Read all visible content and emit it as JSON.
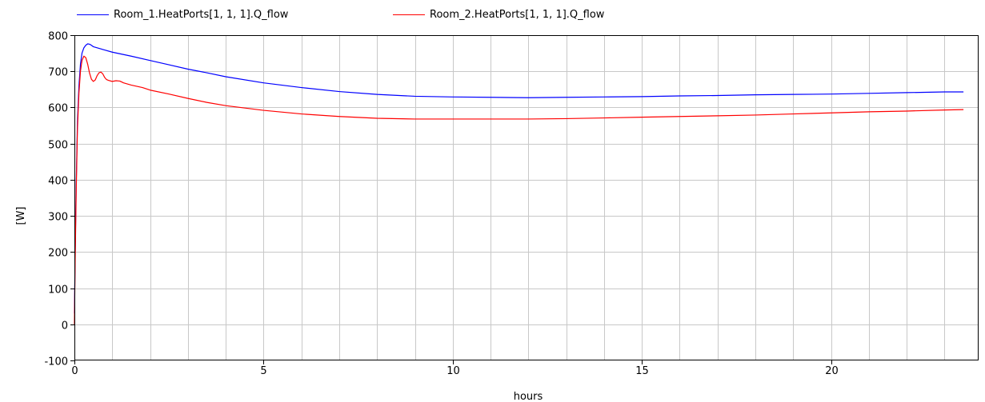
{
  "chart_data": {
    "type": "line",
    "title": "",
    "xlabel": "hours",
    "ylabel": "[W]",
    "xlim": [
      0,
      23.9
    ],
    "ylim": [
      -100,
      800
    ],
    "x_ticks": [
      0,
      5,
      10,
      15,
      20
    ],
    "x_tick_labels": [
      "0",
      "5",
      "10",
      "15",
      "20"
    ],
    "x_minor_step": 1,
    "y_ticks": [
      -100,
      0,
      100,
      200,
      300,
      400,
      500,
      600,
      700,
      800
    ],
    "y_tick_labels": [
      "-100",
      "0",
      "100",
      "200",
      "300",
      "400",
      "500",
      "600",
      "700",
      "800"
    ],
    "grid": true,
    "legend_position": "top",
    "series": [
      {
        "name": "Room_1.HeatPorts[1, 1, 1].Q_flow",
        "color": "#0000ff",
        "x": [
          0,
          0.02,
          0.05,
          0.08,
          0.12,
          0.16,
          0.2,
          0.25,
          0.3,
          0.35,
          0.4,
          0.45,
          0.5,
          0.6,
          0.7,
          0.8,
          1,
          1.5,
          2,
          2.5,
          3,
          3.5,
          4,
          5,
          6,
          7,
          8,
          9,
          10,
          11,
          12,
          13,
          14,
          15,
          16,
          17,
          18,
          19,
          20,
          21,
          22,
          23,
          23.5
        ],
        "values": [
          30,
          200,
          400,
          560,
          660,
          720,
          750,
          765,
          772,
          776,
          775,
          772,
          768,
          765,
          762,
          759,
          753,
          742,
          730,
          718,
          706,
          696,
          685,
          668,
          655,
          644,
          636,
          631,
          629,
          628,
          627,
          628,
          629,
          630,
          632,
          633,
          635,
          636,
          637,
          639,
          641,
          643,
          643
        ]
      },
      {
        "name": "Room_2.HeatPorts[1, 1, 1].Q_flow",
        "color": "#ff0000",
        "x": [
          0,
          0.02,
          0.05,
          0.08,
          0.12,
          0.16,
          0.2,
          0.25,
          0.3,
          0.35,
          0.4,
          0.45,
          0.5,
          0.55,
          0.6,
          0.65,
          0.7,
          0.75,
          0.8,
          0.85,
          0.9,
          1,
          1.1,
          1.2,
          1.3,
          1.5,
          1.8,
          2,
          2.5,
          3,
          3.5,
          4,
          5,
          6,
          7,
          8,
          9,
          10,
          11,
          12,
          13,
          14,
          15,
          16,
          17,
          18,
          19,
          20,
          21,
          22,
          23,
          23.5
        ],
        "values": [
          0,
          180,
          380,
          540,
          640,
          700,
          730,
          742,
          738,
          720,
          695,
          678,
          672,
          676,
          688,
          696,
          698,
          693,
          683,
          677,
          675,
          672,
          674,
          673,
          668,
          662,
          655,
          648,
          637,
          625,
          614,
          605,
          592,
          582,
          575,
          570,
          568,
          568,
          568,
          568,
          569,
          571,
          573,
          575,
          577,
          579,
          582,
          585,
          588,
          590,
          593,
          594
        ]
      }
    ]
  }
}
